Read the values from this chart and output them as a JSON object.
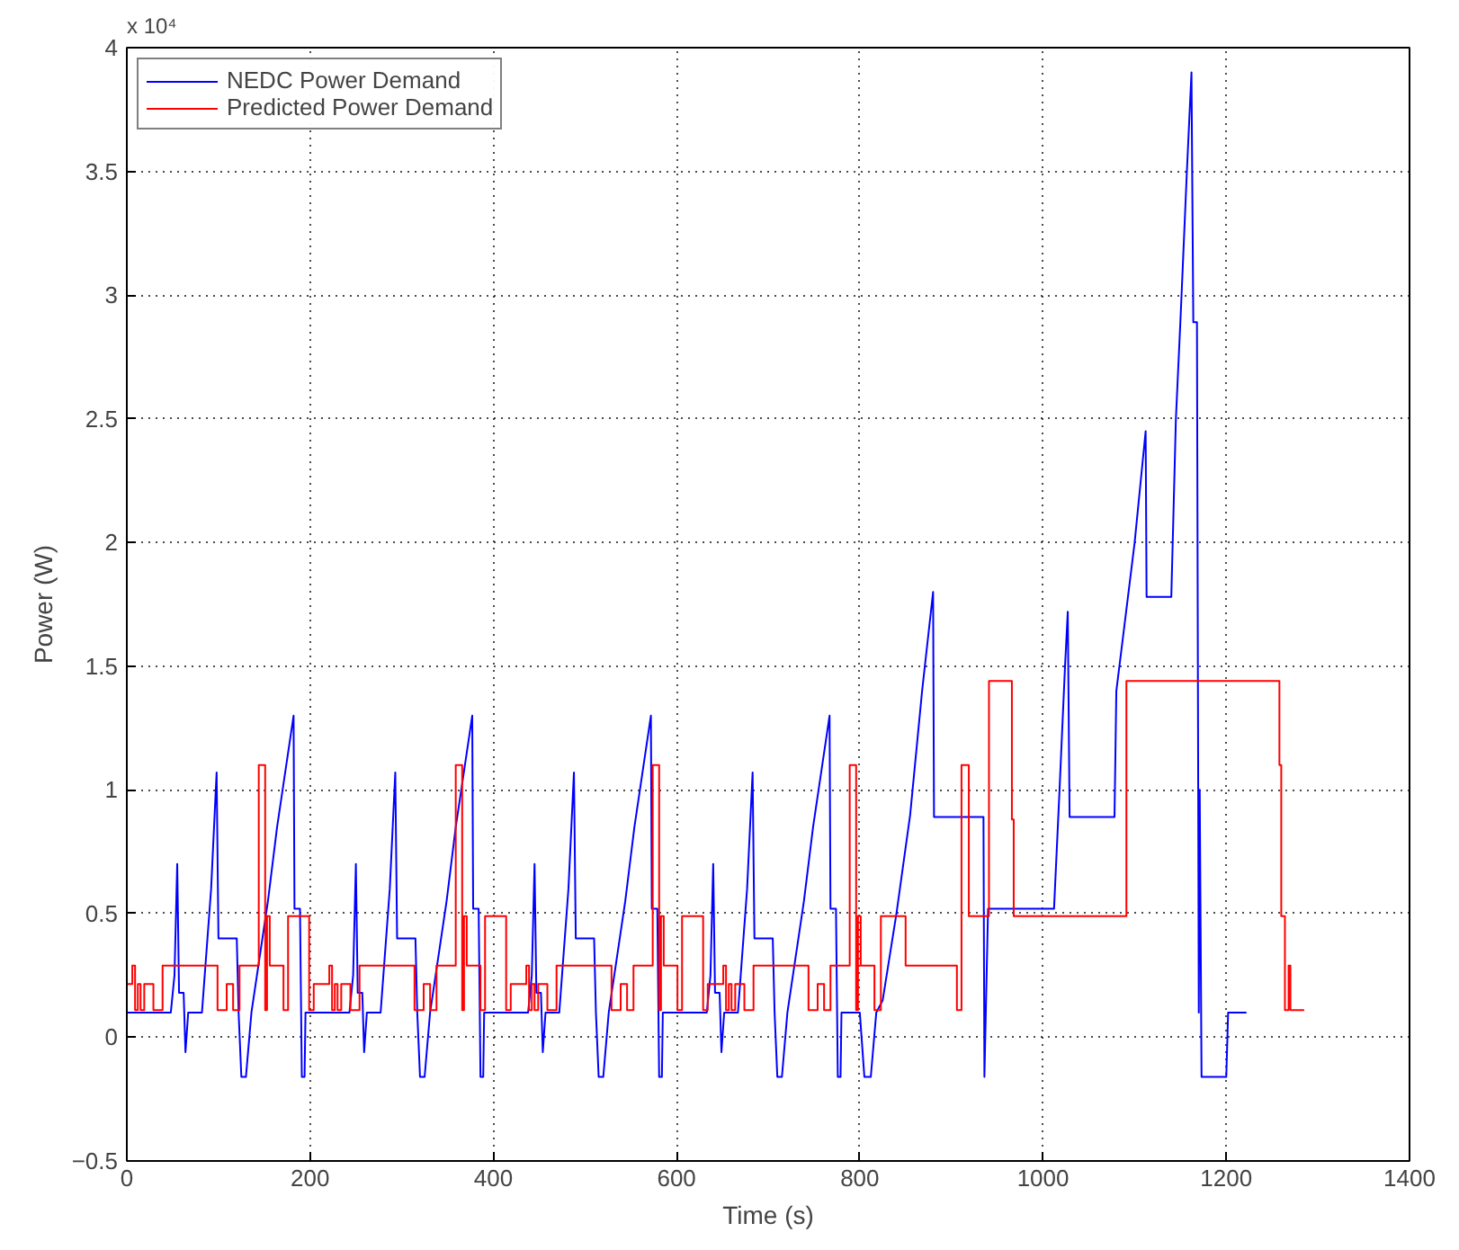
{
  "chart_data": {
    "type": "line",
    "xlabel": "Time (s)",
    "ylabel": "Power (W)",
    "annotations": [
      "x 10⁴"
    ],
    "xlim": [
      0,
      1400
    ],
    "xticks": [
      0,
      200,
      400,
      600,
      800,
      1000,
      1200,
      1400
    ],
    "ylim": [
      -0.5,
      4
    ],
    "yticks": [
      -0.5,
      0,
      0.5,
      1,
      1.5,
      2,
      2.5,
      3,
      3.5,
      4
    ],
    "grid": true,
    "legend": "top left",
    "line_style": "solid",
    "marker": "none",
    "series": [
      {
        "name": "NEDC Power Demand",
        "color": "#0000ff",
        "x": [
          0,
          48,
          52,
          55,
          57,
          62,
          64,
          67,
          82,
          86,
          92,
          98,
          100,
          120,
          122,
          125,
          130,
          136,
          144,
          154,
          164,
          174,
          182,
          183,
          189,
          191,
          194,
          195,
          243,
          247,
          250,
          252,
          257,
          259,
          262,
          277,
          281,
          287,
          293,
          295,
          315,
          317,
          320,
          325,
          331,
          339,
          349,
          359,
          369,
          377,
          378,
          384,
          386,
          389,
          390,
          438,
          442,
          445,
          447,
          452,
          454,
          457,
          472,
          476,
          482,
          488,
          490,
          510,
          512,
          515,
          520,
          526,
          534,
          544,
          554,
          564,
          572,
          573,
          579,
          581,
          584,
          585,
          633,
          637,
          640,
          642,
          647,
          649,
          652,
          667,
          671,
          677,
          683,
          685,
          705,
          707,
          710,
          715,
          721,
          729,
          739,
          749,
          759,
          767,
          768,
          774,
          776,
          779,
          780,
          800,
          805,
          812,
          818,
          825,
          840,
          855,
          868,
          880,
          881,
          935,
          936,
          940,
          1012,
          1018,
          1024,
          1027,
          1029,
          1078,
          1080,
          1090,
          1100,
          1112,
          1113,
          1140,
          1145,
          1150,
          1157,
          1162,
          1164,
          1168,
          1170,
          1171,
          1173,
          1200,
          1202,
          1222
        ],
        "values": [
          0.1,
          0.1,
          0.25,
          0.7,
          0.18,
          0.18,
          -0.06,
          0.1,
          0.1,
          0.3,
          0.6,
          1.07,
          0.4,
          0.4,
          0.1,
          -0.16,
          -0.16,
          0.1,
          0.3,
          0.55,
          0.85,
          1.1,
          1.3,
          0.52,
          0.52,
          -0.16,
          -0.16,
          0.1,
          0.1,
          0.25,
          0.7,
          0.18,
          0.18,
          -0.06,
          0.1,
          0.1,
          0.3,
          0.6,
          1.07,
          0.4,
          0.4,
          0.1,
          -0.16,
          -0.16,
          0.1,
          0.3,
          0.55,
          0.85,
          1.1,
          1.3,
          0.52,
          0.52,
          -0.16,
          -0.16,
          0.1,
          0.1,
          0.25,
          0.7,
          0.18,
          0.18,
          -0.06,
          0.1,
          0.1,
          0.3,
          0.6,
          1.07,
          0.4,
          0.4,
          0.1,
          -0.16,
          -0.16,
          0.1,
          0.3,
          0.55,
          0.85,
          1.1,
          1.3,
          0.52,
          0.52,
          -0.16,
          -0.16,
          0.1,
          0.1,
          0.25,
          0.7,
          0.18,
          0.18,
          -0.06,
          0.1,
          0.1,
          0.3,
          0.6,
          1.07,
          0.4,
          0.4,
          0.1,
          -0.16,
          -0.16,
          0.1,
          0.3,
          0.55,
          0.85,
          1.1,
          1.3,
          0.52,
          0.52,
          -0.16,
          -0.16,
          0.1,
          0.1,
          -0.16,
          -0.16,
          0.1,
          0.15,
          0.5,
          0.9,
          1.4,
          1.8,
          0.89,
          0.89,
          -0.16,
          0.52,
          0.52,
          1.0,
          1.5,
          1.72,
          0.89,
          0.89,
          1.4,
          1.7,
          2.0,
          2.45,
          1.78,
          1.78,
          2.5,
          2.9,
          3.5,
          3.9,
          2.89,
          2.89,
          0.1,
          1.0,
          -0.16,
          -0.16,
          0.1,
          0.1
        ]
      },
      {
        "name": "Predicted Power Demand",
        "color": "#ff0000",
        "type": "step",
        "x": [
          0,
          6,
          9,
          12,
          15,
          19,
          29,
          39,
          99,
          109,
          116,
          123,
          144,
          151,
          153,
          156,
          171,
          176,
          199,
          204,
          215,
          221,
          224,
          227,
          230,
          234,
          244,
          254,
          314,
          324,
          331,
          338,
          359,
          366,
          368,
          371,
          386,
          391,
          414,
          419,
          430,
          436,
          439,
          442,
          445,
          449,
          459,
          469,
          529,
          539,
          546,
          553,
          574,
          581,
          583,
          586,
          601,
          606,
          629,
          634,
          645,
          651,
          654,
          657,
          660,
          664,
          674,
          684,
          744,
          754,
          761,
          768,
          789,
          796,
          798,
          801,
          816,
          823,
          850,
          906,
          911,
          919,
          941,
          966,
          968,
          1091,
          1258,
          1260,
          1264,
          1268,
          1270,
          1285
        ],
        "values": [
          0.215,
          0.29,
          0.11,
          0.215,
          0.11,
          0.215,
          0.11,
          0.29,
          0.11,
          0.215,
          0.11,
          0.29,
          1.1,
          0.11,
          0.49,
          0.29,
          0.11,
          0.49,
          0.11,
          0.215,
          0.215,
          0.29,
          0.11,
          0.215,
          0.11,
          0.215,
          0.11,
          0.29,
          0.11,
          0.215,
          0.11,
          0.29,
          1.1,
          0.11,
          0.49,
          0.29,
          0.11,
          0.49,
          0.11,
          0.215,
          0.215,
          0.29,
          0.11,
          0.215,
          0.11,
          0.215,
          0.11,
          0.29,
          0.11,
          0.215,
          0.11,
          0.29,
          1.1,
          0.11,
          0.49,
          0.29,
          0.11,
          0.49,
          0.11,
          0.215,
          0.215,
          0.29,
          0.11,
          0.215,
          0.11,
          0.215,
          0.11,
          0.29,
          0.11,
          0.215,
          0.11,
          0.29,
          1.1,
          0.11,
          0.49,
          0.29,
          0.11,
          0.49,
          0.29,
          0.11,
          1.1,
          0.49,
          1.44,
          0.88,
          0.49,
          1.44,
          1.1,
          0.49,
          0.11,
          0.29,
          0.11,
          0.11
        ]
      }
    ]
  }
}
